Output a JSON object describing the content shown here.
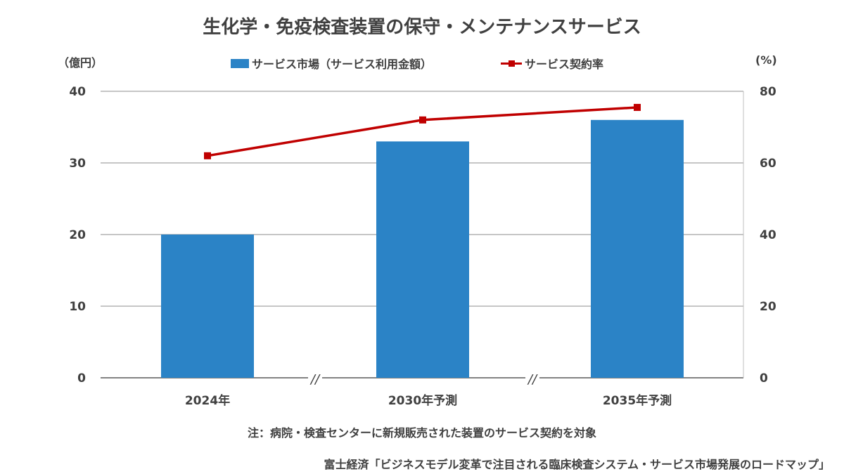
{
  "chart_data": {
    "type": "bar",
    "title": "生化学・免疫検査装置の保守・メンテナンスサービス",
    "categories": [
      "2024年",
      "2030年予測",
      "2035年予測"
    ],
    "series": [
      {
        "name": "サービス市場（サービス利用金額）",
        "type": "bar",
        "axis": "left",
        "color": "#2b83c6",
        "values": [
          20,
          33,
          36
        ]
      },
      {
        "name": "サービス契約率",
        "type": "line",
        "axis": "right",
        "color": "#c00000",
        "values": [
          62,
          72,
          75.5
        ]
      }
    ],
    "y_left": {
      "unit": "（億円）",
      "range": [
        0,
        40
      ],
      "ticks": [
        0,
        10,
        20,
        30,
        40
      ]
    },
    "y_right": {
      "unit": "(%)",
      "range": [
        0,
        80
      ],
      "ticks": [
        0,
        20,
        40,
        60,
        80
      ]
    },
    "axis_break_marks": [
      "//",
      "//"
    ],
    "grid": true,
    "legend_position": "top"
  },
  "note": "注：病院・検査センターに新規販売された装置のサービス契約を対象",
  "source": "富士経済「ビジネスモデル変革で注目される臨床検査システム・サービス市場発展のロードマップ」"
}
